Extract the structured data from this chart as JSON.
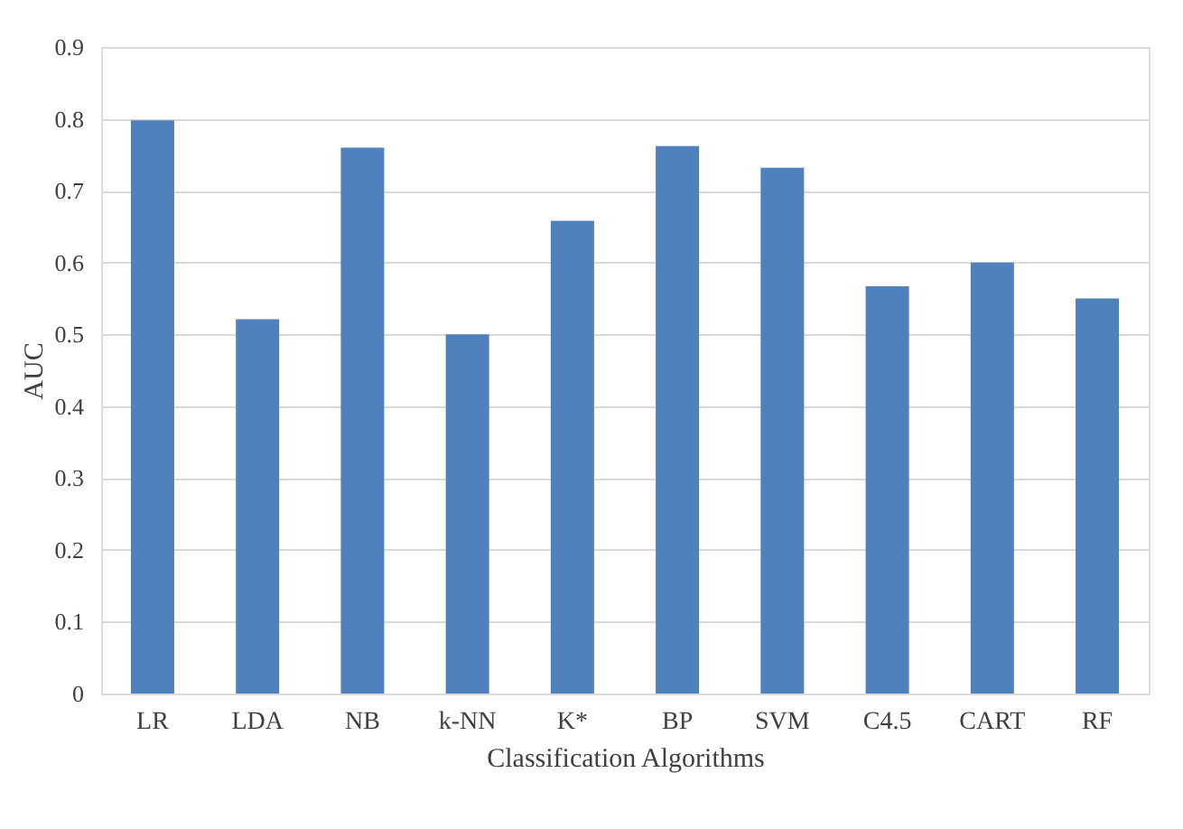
{
  "chart_data": {
    "type": "bar",
    "xlabel": "Classification Algorithms",
    "ylabel": "AUC",
    "categories": [
      "LR",
      "LDA",
      "NB",
      "k-NN",
      "K*",
      "BP",
      "SVM",
      "C4.5",
      "CART",
      "RF"
    ],
    "values": [
      0.798,
      0.521,
      0.76,
      0.5,
      0.658,
      0.762,
      0.732,
      0.567,
      0.6,
      0.55
    ],
    "color": "#4f81bd",
    "ylim": [
      0,
      0.9
    ],
    "yticks": [
      0,
      0.1,
      0.2,
      0.3,
      0.4,
      0.5,
      0.6,
      0.7,
      0.8,
      0.9
    ],
    "grid": "y"
  }
}
